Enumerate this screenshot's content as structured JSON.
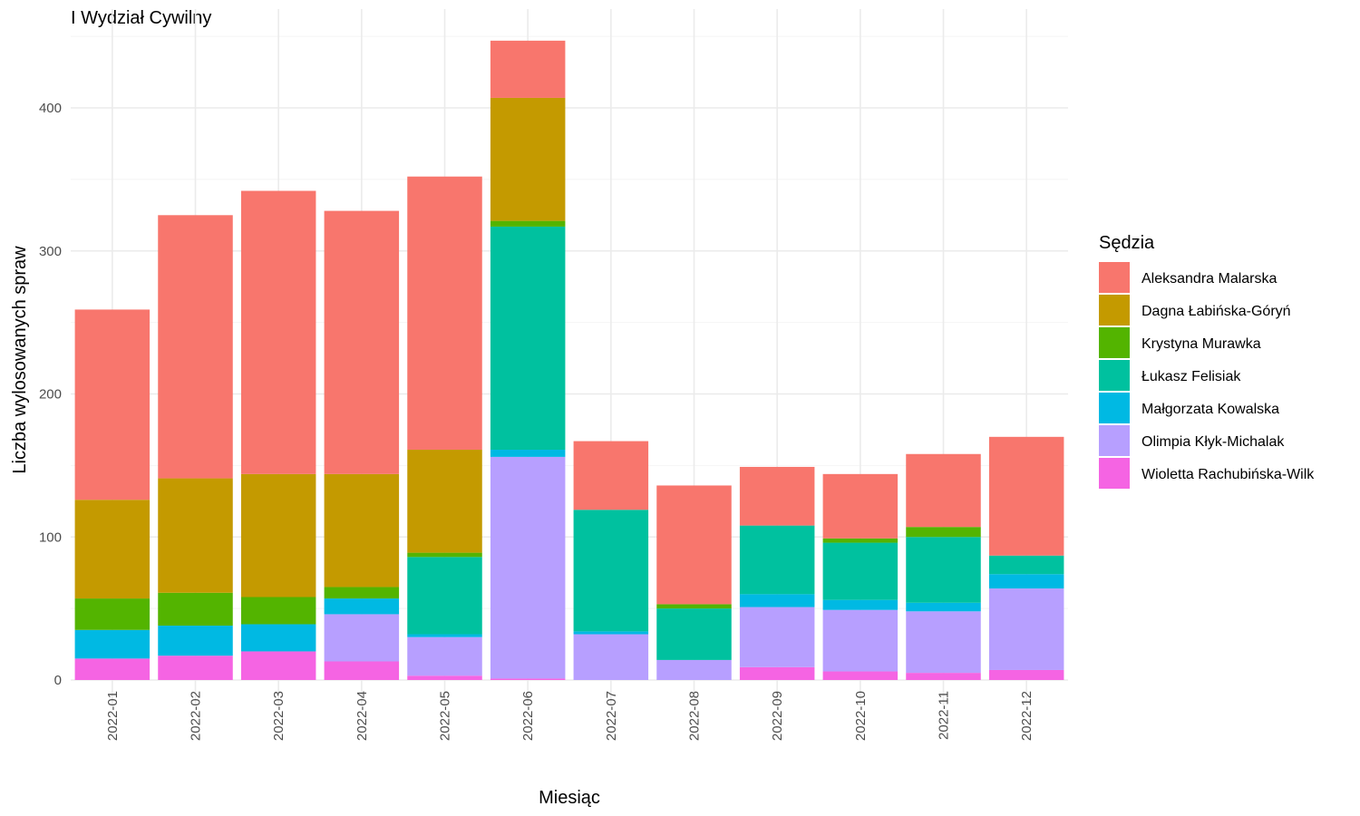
{
  "chart_data": {
    "type": "bar",
    "stacked": true,
    "title": "I Wydział Cywilny",
    "xlabel": "Miesiąc",
    "ylabel": "Liczba wylosowanych spraw",
    "ylim": [
      0,
      450
    ],
    "yticks": [
      0,
      100,
      200,
      300,
      400
    ],
    "grid": true,
    "legend": {
      "title": "Sędzia",
      "position": "right"
    },
    "categories": [
      "2022-01",
      "2022-02",
      "2022-03",
      "2022-04",
      "2022-05",
      "2022-06",
      "2022-07",
      "2022-08",
      "2022-09",
      "2022-10",
      "2022-11",
      "2022-12"
    ],
    "series": [
      {
        "name": "Wioletta Rachubińska-Wilk",
        "color": "#F564E3",
        "values": [
          15,
          17,
          20,
          13,
          3,
          1,
          0,
          0,
          9,
          6,
          5,
          7
        ]
      },
      {
        "name": "Olimpia Kłyk-Michalak",
        "color": "#B79FFF",
        "values": [
          0,
          0,
          0,
          33,
          27,
          155,
          32,
          14,
          42,
          43,
          43,
          57
        ]
      },
      {
        "name": "Małgorzata Kowalska",
        "color": "#00B9E3",
        "values": [
          20,
          21,
          19,
          11,
          2,
          5,
          2,
          0,
          9,
          7,
          6,
          10
        ]
      },
      {
        "name": "Łukasz Felisiak",
        "color": "#00C19F",
        "values": [
          0,
          0,
          0,
          0,
          54,
          156,
          85,
          36,
          48,
          40,
          46,
          13
        ]
      },
      {
        "name": "Krystyna Murawka",
        "color": "#53B400",
        "values": [
          22,
          23,
          19,
          8,
          3,
          4,
          0,
          3,
          0,
          3,
          7,
          0
        ]
      },
      {
        "name": "Dagna Łabińska-Góryń",
        "color": "#C49A00",
        "values": [
          69,
          80,
          86,
          79,
          72,
          86,
          0,
          0,
          0,
          0,
          0,
          0
        ]
      },
      {
        "name": "Aleksandra Malarska",
        "color": "#F8766D",
        "values": [
          133,
          184,
          198,
          184,
          191,
          40,
          48,
          83,
          41,
          45,
          51,
          83
        ]
      }
    ],
    "legend_order": [
      "Aleksandra Malarska",
      "Dagna Łabińska-Góryń",
      "Krystyna Murawka",
      "Łukasz Felisiak",
      "Małgorzata Kowalska",
      "Olimpia Kłyk-Michalak",
      "Wioletta Rachubińska-Wilk"
    ]
  }
}
